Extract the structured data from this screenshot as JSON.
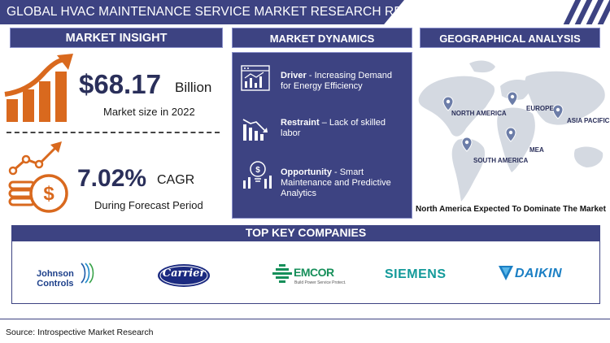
{
  "header": {
    "title": "GLOBAL HVAC MAINTENANCE SERVICE MARKET RESEARCH REPORT"
  },
  "sections": {
    "market_insight": "MARKET INSIGHT",
    "market_dynamics": "MARKET DYNAMICS",
    "geographical_analysis": "GEOGRAPHICAL ANALYSIS",
    "top_key_companies": "TOP KEY COMPANIES"
  },
  "insight": {
    "market_size_value": "$68.17",
    "market_size_unit": "Billion",
    "market_size_caption": "Market size in 2022",
    "cagr_value": "7.02%",
    "cagr_unit": "CAGR",
    "cagr_caption": "During Forecast Period"
  },
  "dynamics": {
    "driver_label": "Driver",
    "driver_text": " - Increasing Demand for Energy Efficiency",
    "restraint_label": "Restraint",
    "restraint_text": " – Lack of skilled labor",
    "opportunity_label": "Opportunity",
    "opportunity_text": " - Smart Maintenance and Predictive Analytics"
  },
  "geography": {
    "regions": [
      "NORTH AMERICA",
      "EUROPE",
      "ASIA PACIFIC",
      "MEA",
      "SOUTH AMERICA"
    ],
    "caption": "North America Expected To Dominate The Market"
  },
  "companies": {
    "johnson_line1": "Johnson",
    "johnson_line2": "Controls",
    "carrier": "Carrier",
    "emcor": "EMCOR",
    "emcor_tagline": "Build Power Service Protect.",
    "siemens": "SIEMENS",
    "daikin": "DAIKIN"
  },
  "footer": {
    "source": "Source: Introspective Market Research"
  },
  "colors": {
    "navy": "#3d4382",
    "orange": "#d9691e",
    "siemens_teal": "#139a9a",
    "daikin_blue": "#1b7fc4",
    "emcor_green": "#168f5a",
    "map_gray": "#d4d9e1"
  }
}
